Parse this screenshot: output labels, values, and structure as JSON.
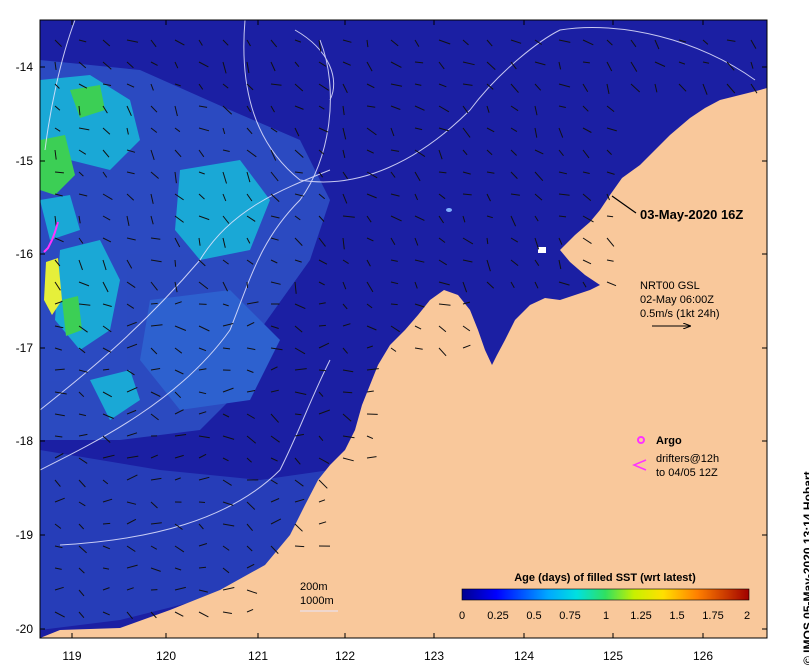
{
  "map": {
    "x_ticks": [
      "119",
      "120",
      "121",
      "122",
      "123",
      "124",
      "125",
      "126"
    ],
    "y_ticks": [
      "-14",
      "-15",
      "-16",
      "-17",
      "-18",
      "-19",
      "-20"
    ],
    "timestamp_label": "03-May-2020 16Z",
    "current_info": {
      "line1": "NRT00 GSL",
      "line2": "02-May 06:00Z",
      "line3": "0.5m/s (1kt 24h)"
    },
    "legend": {
      "argo": "Argo",
      "drifters_line1": "drifters@12h",
      "drifters_line2": "to 04/05 12Z"
    },
    "contours": {
      "line1": "200m",
      "line2": "1000m"
    },
    "colorbar": {
      "title": "Age (days) of filled SST (wrt latest)",
      "ticks": [
        "0",
        "0.25",
        "0.5",
        "0.75",
        "1",
        "1.25",
        "1.5",
        "1.75",
        "2"
      ]
    },
    "credit": "© IMOS 05-May-2020 13:14 Hobart",
    "colors": {
      "land": "#f9c89b",
      "ocean_deep": "#1a1f9e",
      "ocean_mid": "#2a55c8",
      "cyan": "#1fb3d8",
      "green": "#3fd04a",
      "yellow": "#e8f03a",
      "argo": "#ff33ff"
    }
  }
}
